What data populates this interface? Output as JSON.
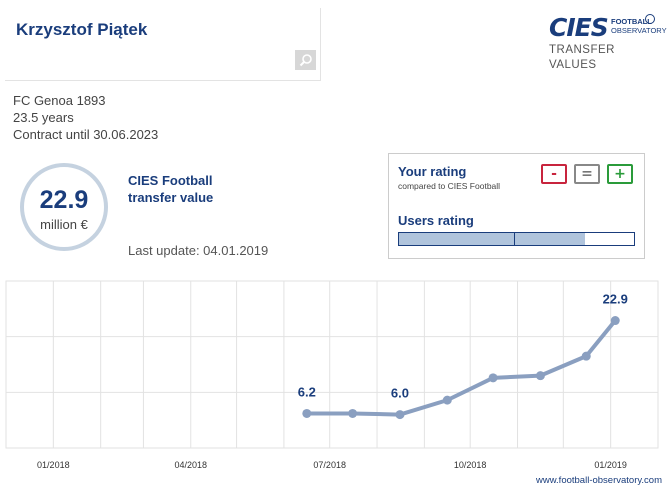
{
  "player": {
    "name": "Krzysztof Piątek"
  },
  "search": {
    "icon": "search-icon"
  },
  "logo": {
    "brand": "CIES",
    "line1": "FOOTBALL",
    "line2": "OBSERVATORY",
    "section_line1": "TRANSFER",
    "section_line2": "VALUES"
  },
  "info": {
    "club": "FC Genoa 1893",
    "age": "23.5 years",
    "contract": "Contract until 30.06.2023"
  },
  "value": {
    "amount": "22.9",
    "unit": "million €"
  },
  "cies": {
    "title": "CIES Football transfer value",
    "last_update": "Last update: 04.01.2019"
  },
  "rating": {
    "your_label": "Your rating",
    "compared": "compared to CIES Football",
    "minus": "-",
    "equal": "=",
    "plus": "+",
    "users_label": "Users rating",
    "users_fill": 0.79,
    "users_marker": 0.49,
    "colors": {
      "minus": "#c8243d",
      "equal": "#888888",
      "plus": "#2a9b3a"
    }
  },
  "footer": {
    "link": "www.football-observatory.com"
  },
  "chart_data": {
    "type": "line",
    "x": [
      "2018-06-16",
      "2018-07-16",
      "2018-08-16",
      "2018-09-16",
      "2018-10-16",
      "2018-11-16",
      "2018-12-16",
      "2019-01-04"
    ],
    "y": [
      6.2,
      6.2,
      6.0,
      8.6,
      12.6,
      13.0,
      16.5,
      22.9
    ],
    "point_labels": [
      "6.2",
      "",
      "6.0",
      "",
      "",
      "",
      "",
      "22.9"
    ],
    "tick_labels": [
      "01/2018",
      "04/2018",
      "07/2018",
      "10/2018",
      "01/2019"
    ],
    "ylim": [
      0,
      30
    ],
    "grid": true,
    "line_color": "#8a9fc0",
    "label_color": "#1a3d7c"
  }
}
